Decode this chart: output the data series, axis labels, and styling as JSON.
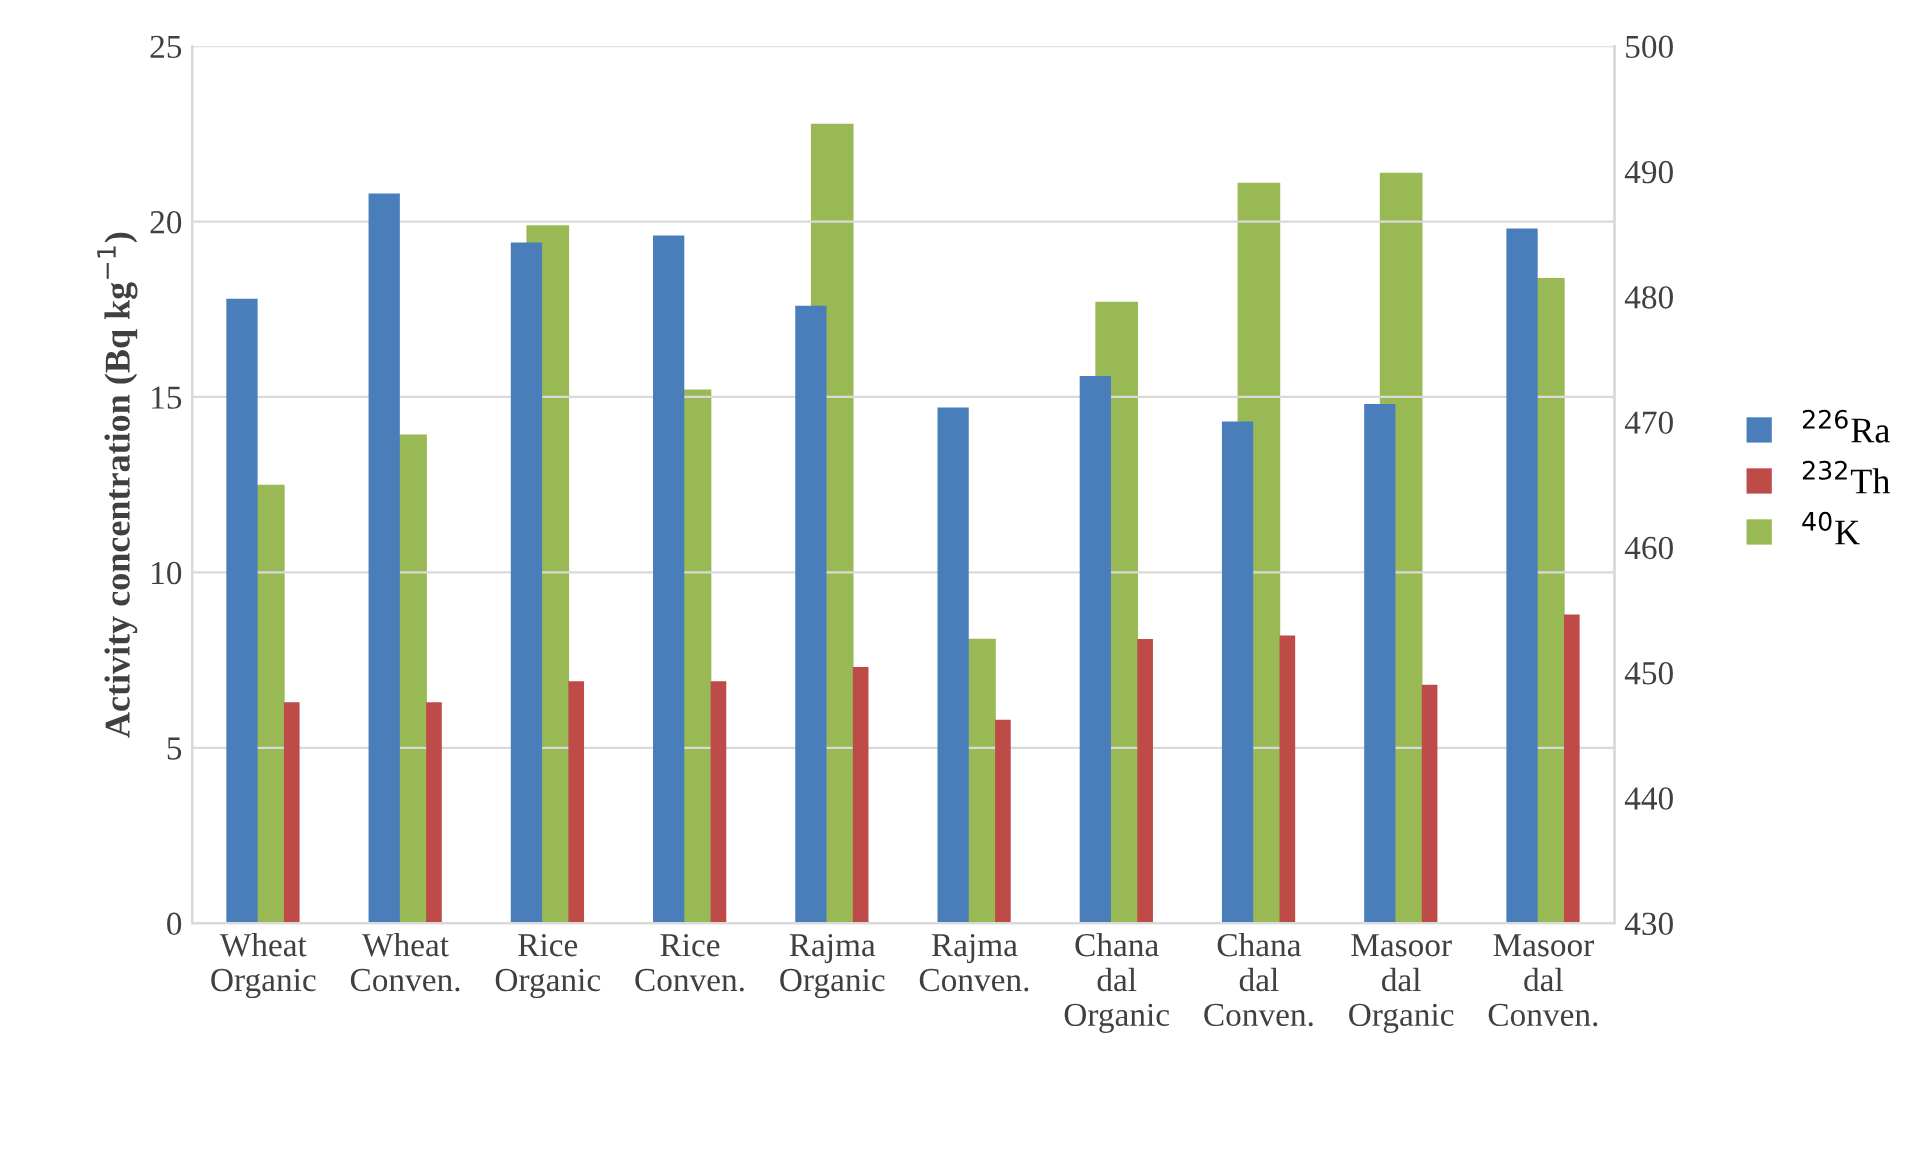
{
  "chart_data": {
    "type": "bar",
    "ylabel": "Activity concentration (Bq kg$^{−1}$)",
    "categories": [
      "Wheat\nOrganic",
      "Wheat\nConven.",
      "Rice\nOrganic",
      "Rice\nConven.",
      "Rajma\nOrganic",
      "Rajma\nConven.",
      "Chana\ndal\nOrganic",
      "Chana\ndal\nConven.",
      "Masoor\ndal\nOrganic",
      "Masoor\ndal\nConven."
    ],
    "series": [
      {
        "name": "$^{226}$Ra",
        "color": "#4a7ebb",
        "values": [
          17.8,
          20.8,
          19.4,
          19.6,
          17.6,
          14.7,
          15.6,
          14.3,
          14.8,
          19.8
        ]
      },
      {
        "name": "$^{232}$Th",
        "color": "#be4b48",
        "values": [
          6.3,
          6.3,
          6.9,
          6.9,
          7.3,
          5.8,
          8.1,
          8.2,
          6.8,
          8.8
        ]
      },
      {
        "name": "$^{40}$K",
        "color": "#98b954",
        "axis": "y2",
        "values": [
          465,
          469,
          485.7,
          472.6,
          493.8,
          452.7,
          479.6,
          489.1,
          489.9,
          481.5
        ]
      }
    ],
    "ylim": [
      0,
      25
    ],
    "yticks": [
      0,
      5,
      10,
      15,
      20,
      25
    ],
    "y2lim": [
      430,
      500
    ],
    "y2ticks": [
      430,
      440,
      450,
      460,
      470,
      480,
      490,
      500
    ],
    "grid": "y",
    "legend": "right"
  }
}
